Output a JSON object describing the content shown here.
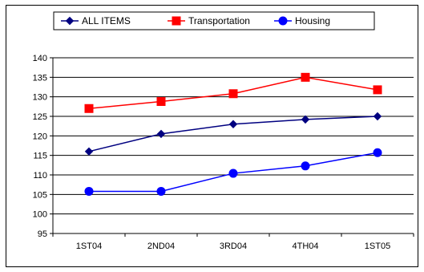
{
  "chart_data": {
    "type": "line",
    "title": "",
    "xlabel": "",
    "ylabel": "",
    "categories": [
      "1ST04",
      "2ND04",
      "3RD04",
      "4TH04",
      "1ST05"
    ],
    "ylim": [
      95,
      140
    ],
    "yticks": [
      95,
      100,
      105,
      110,
      115,
      120,
      125,
      130,
      135,
      140
    ],
    "grid": "horizontal",
    "legend_position": "top",
    "series": [
      {
        "name": "ALL ITEMS",
        "color": "#000080",
        "marker": "diamond",
        "values": [
          116,
          120.5,
          123,
          124.2,
          125
        ]
      },
      {
        "name": "Transportation",
        "color": "#ff0000",
        "marker": "square",
        "values": [
          127,
          128.8,
          130.8,
          135,
          131.8
        ]
      },
      {
        "name": "Housing",
        "color": "#0000ff",
        "marker": "circle",
        "values": [
          105.8,
          105.8,
          110.4,
          112.3,
          115.7
        ]
      }
    ]
  }
}
